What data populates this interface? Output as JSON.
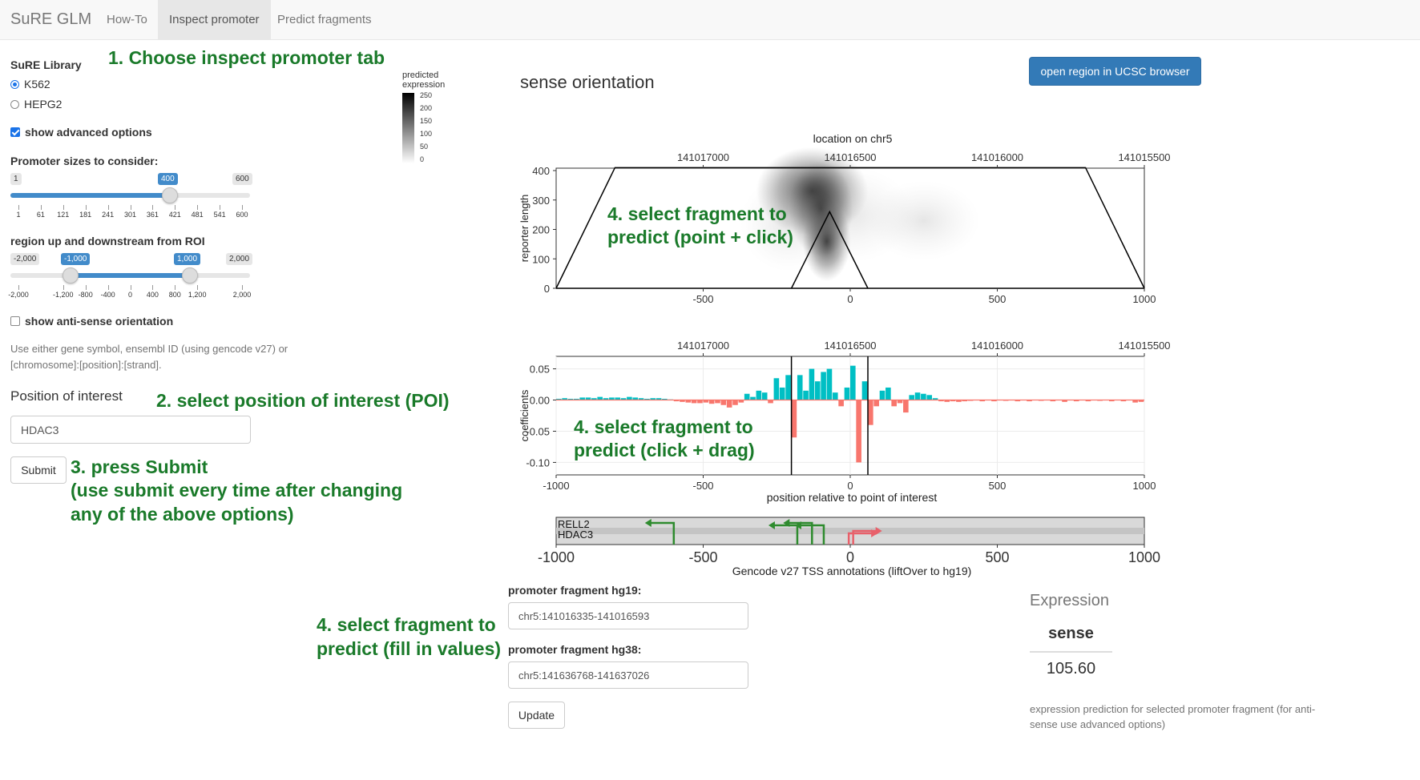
{
  "navbar": {
    "brand": "SuRE GLM",
    "tabs": [
      {
        "label": "How-To",
        "active": false
      },
      {
        "label": "Inspect promoter",
        "active": true
      },
      {
        "label": "Predict fragments",
        "active": false
      }
    ]
  },
  "sidebar": {
    "library_label": "SuRE Library",
    "library_options": [
      {
        "label": "K562",
        "selected": true
      },
      {
        "label": "HEPG2",
        "selected": false
      }
    ],
    "advanced_label": "show advanced options",
    "advanced_checked": true,
    "promoter_slider": {
      "label": "Promoter sizes to consider:",
      "min_label": "1",
      "max_label": "600",
      "value_label": "400",
      "min": 1,
      "max": 600,
      "value": 400,
      "ticks": [
        "1",
        "61",
        "121",
        "181",
        "241",
        "301",
        "361",
        "421",
        "481",
        "541",
        "600"
      ]
    },
    "region_slider": {
      "label": "region up and downstream from ROI",
      "min_label": "-2,000",
      "max_label": "2,000",
      "low_label": "-1,000",
      "high_label": "1,000",
      "min": -2000,
      "max": 2000,
      "low": -1000,
      "high": 1000,
      "ticks": [
        "-2,000",
        "-1,200",
        "-800",
        "-400",
        "0",
        "400",
        "800",
        "1,200",
        "2,000"
      ]
    },
    "antisense_label": "show anti-sense orientation",
    "antisense_checked": false,
    "help_text_1": "Use either gene symbol, ensembl ID (using gencode v27) or",
    "help_text_2": "[chromosome]:[position]:[strand].",
    "poi_label": "Position of interest",
    "poi_value": "HDAC3",
    "submit_label": "Submit"
  },
  "annotations": {
    "a1": "1. Choose inspect promoter tab",
    "a2": "2. select position of interest (POI)",
    "a3_1": "3. press Submit",
    "a3_2": "(use submit every time after changing",
    "a3_3": "any of the above options)",
    "a4a_1": "4. select fragment to",
    "a4a_2": "predict (point + click)",
    "a4b_1": "4. select fragment to",
    "a4b_2": "predict (click + drag)",
    "a4c_1": "4. select fragment to",
    "a4c_2": "predict (fill in values)"
  },
  "legend": {
    "title_1": "predicted",
    "title_2": "expression",
    "values": [
      "250",
      "200",
      "150",
      "100",
      "50",
      "0"
    ]
  },
  "main": {
    "title": "sense orientation",
    "ucsc_button": "open region in UCSC browser",
    "heatmap_top_label": "location on chr5",
    "chr_ticks": [
      "141017000",
      "141016500",
      "141016000",
      "141015500"
    ],
    "heatmap_ylabel": "reporter length",
    "heatmap_yticks": [
      "400",
      "300",
      "200",
      "100",
      "0"
    ],
    "rel_ticks": [
      "-500",
      "0",
      "500",
      "1000"
    ],
    "coef_ylabel": "coefficients",
    "coef_yticks": [
      "0.05",
      "0.00",
      "-0.05",
      "-0.10"
    ],
    "coef_xticks": [
      "-1000",
      "-500",
      "0",
      "500",
      "1000"
    ],
    "coef_xlabel": "position relative to point of interest",
    "tss_genes": [
      "RELL2",
      "HDAC3"
    ],
    "tss_xticks": [
      "-1000",
      "-500",
      "0",
      "500",
      "1000"
    ],
    "tss_xlabel": "Gencode v27 TSS annotations (liftOver to hg19)",
    "colors": {
      "positive": "#00bfc4",
      "negative": "#f8766d",
      "gene_pos": "#2e8b2e",
      "gene_neg": "#e8606a"
    }
  },
  "fragment": {
    "hg19_label": "promoter fragment hg19:",
    "hg19_value": "chr5:141016335-141016593",
    "hg38_label": "promoter fragment hg38:",
    "hg38_value": "chr5:141636768-141637026",
    "update_label": "Update"
  },
  "expression": {
    "title": "Expression",
    "col_header": "sense",
    "value": "105.60",
    "note_1": "expression prediction for selected promoter fragment (for anti-",
    "note_2": "sense use advanced options)"
  },
  "chart_data": [
    {
      "type": "heatmap",
      "title": "",
      "xlabel": "location on chr5",
      "ylabel": "reporter length",
      "xlim": [
        -1000,
        1000
      ],
      "ylim": [
        0,
        400
      ],
      "x_ticks_relative": [
        -500,
        0,
        500,
        1000
      ],
      "x_ticks_chr5": [
        141017000,
        141016500,
        141016000,
        141015500
      ],
      "selected_fragment_relative": [
        -200,
        60
      ]
    },
    {
      "type": "bar",
      "title": "",
      "xlabel": "position relative to point of interest",
      "ylabel": "coefficients",
      "xlim": [
        -1000,
        1000
      ],
      "ylim": [
        -0.12,
        0.07
      ],
      "y_ticks": [
        0.05,
        0.0,
        -0.05,
        -0.1
      ],
      "selection": [
        -200,
        60
      ],
      "series": [
        {
          "x": [
            -1000,
            -980,
            -960,
            -940,
            -920,
            -900,
            -880,
            -860,
            -840,
            -820,
            -800,
            -780,
            -760,
            -740,
            -720,
            -700,
            -680,
            -660,
            -640,
            -620,
            -600,
            -580,
            -560,
            -540,
            -520,
            -500,
            -480,
            -460,
            -440,
            -420,
            -400,
            -380,
            -360,
            -340,
            -320,
            -300,
            -280,
            -260,
            -240,
            -220,
            -200,
            -180,
            -160,
            -140,
            -120,
            -100,
            -80,
            -60,
            -40,
            -20,
            0,
            20,
            40,
            60,
            80,
            100,
            120,
            140,
            160,
            180,
            200,
            220,
            240,
            260,
            280,
            300,
            320,
            340,
            360,
            380,
            400,
            440,
            480,
            520,
            560,
            600,
            640,
            680,
            720,
            760,
            800,
            840,
            880,
            920,
            960,
            980
          ],
          "values": [
            0.002,
            0.003,
            0.002,
            0.002,
            0.004,
            0.004,
            0.003,
            0.005,
            0.003,
            0.004,
            0.004,
            0.003,
            0.005,
            0.004,
            0.003,
            0.002,
            0.003,
            0.003,
            0.002,
            0.001,
            -0.002,
            -0.003,
            -0.004,
            -0.005,
            -0.005,
            -0.004,
            -0.006,
            -0.005,
            -0.008,
            -0.012,
            -0.008,
            -0.004,
            0.01,
            0.005,
            0.015,
            0.012,
            -0.005,
            0.035,
            0.02,
            0.04,
            -0.06,
            0.04,
            0.015,
            0.05,
            0.03,
            0.045,
            0.05,
            0.012,
            -0.01,
            0.02,
            0.055,
            -0.1,
            0.03,
            -0.04,
            -0.01,
            0.015,
            0.02,
            -0.01,
            -0.005,
            -0.02,
            0.008,
            0.012,
            0.01,
            0.008,
            0.003,
            -0.002,
            -0.003,
            -0.002,
            -0.003,
            -0.002,
            -0.001,
            -0.002,
            -0.002,
            -0.001,
            -0.002,
            -0.002,
            -0.001,
            -0.002,
            -0.003,
            -0.002,
            -0.002,
            -0.001,
            -0.002,
            -0.002,
            -0.004,
            -0.003
          ]
        }
      ]
    },
    {
      "type": "table",
      "title": "",
      "xlabel": "Gencode v27 TSS annotations (liftOver to hg19)",
      "xlim": [
        -1000,
        1000
      ],
      "tss": [
        {
          "gene": "RELL2",
          "positions": [
            -600,
            -180,
            -130,
            -90
          ],
          "strand": "-"
        },
        {
          "gene": "HDAC3",
          "positions": [
            -5,
            10
          ],
          "strand": "+"
        }
      ]
    }
  ]
}
